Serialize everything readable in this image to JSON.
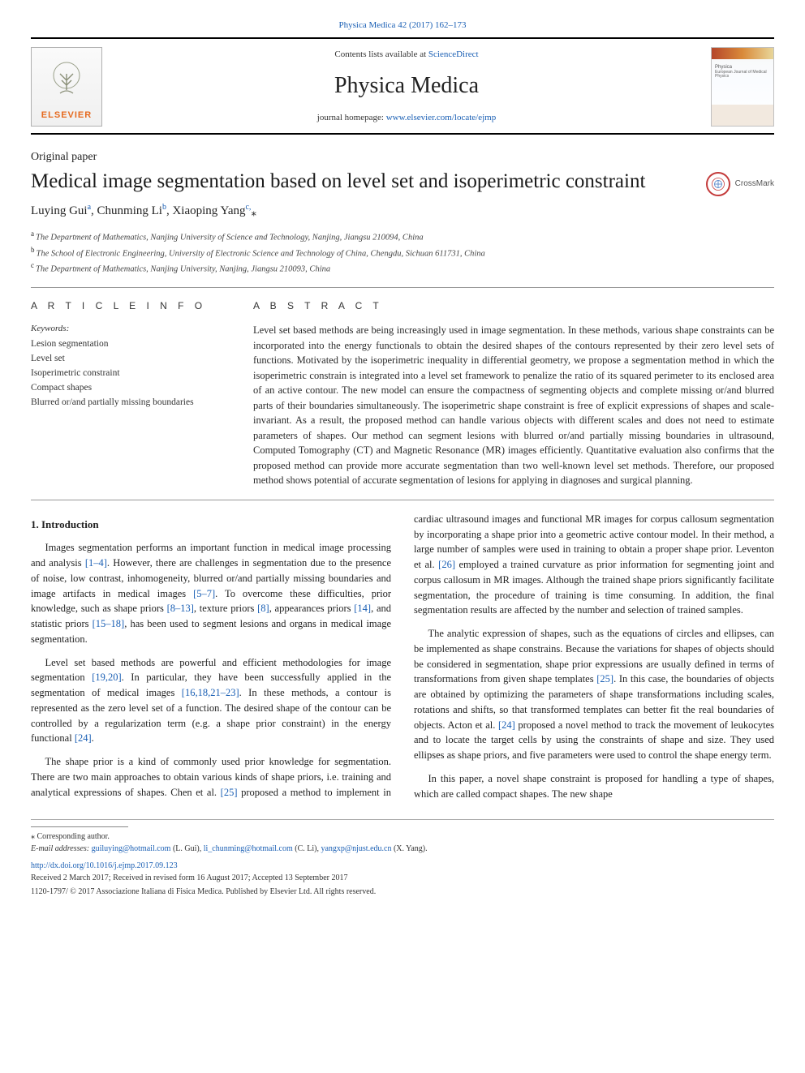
{
  "journal": {
    "top_link_label": "Physica Medica 42 (2017) 162–173",
    "top_link_href": "#",
    "contents_prefix": "Contents lists available at ",
    "contents_link": "ScienceDirect",
    "name": "Physica Medica",
    "homepage_prefix": "journal homepage: ",
    "homepage_url": "www.elsevier.com/locate/ejmp",
    "cover_title": "Physica",
    "cover_sub": "European Journal\nof Medical Physics",
    "elsevier_brand": "ELSEVIER"
  },
  "paper": {
    "type": "Original paper",
    "title": "Medical image segmentation based on level set and isoperimetric constraint",
    "crossmark": "CrossMark",
    "authors_html": "Luying Gui<sup class=\"sup\">a</sup>, Chunming Li<sup class=\"sup\">b</sup>, Xiaoping Yang<sup class=\"sup\">c,</sup><span class=\"corr-icon\">⁎</span>",
    "affiliations": [
      {
        "mark": "a",
        "text": "The Department of Mathematics, Nanjing University of Science and Technology, Nanjing, Jiangsu 210094, China"
      },
      {
        "mark": "b",
        "text": "The School of Electronic Engineering, University of Electronic Science and Technology of China, Chengdu, Sichuan 611731, China"
      },
      {
        "mark": "c",
        "text": "The Department of Mathematics, Nanjing University, Nanjing, Jiangsu 210093, China"
      }
    ]
  },
  "article_info": {
    "heading": "A R T I C L E  I N F O",
    "keywords_label": "Keywords:",
    "keywords": [
      "Lesion segmentation",
      "Level set",
      "Isoperimetric constraint",
      "Compact shapes",
      "Blurred or/and partially missing boundaries"
    ]
  },
  "abstract": {
    "heading": "A B S T R A C T",
    "text": "Level set based methods are being increasingly used in image segmentation. In these methods, various shape constraints can be incorporated into the energy functionals to obtain the desired shapes of the contours represented by their zero level sets of functions. Motivated by the isoperimetric inequality in differential geometry, we propose a segmentation method in which the isoperimetric constrain is integrated into a level set framework to penalize the ratio of its squared perimeter to its enclosed area of an active contour. The new model can ensure the compactness of segmenting objects and complete missing or/and blurred parts of their boundaries simultaneously. The isoperimetric shape constraint is free of explicit expressions of shapes and scale-invariant. As a result, the proposed method can handle various objects with different scales and does not need to estimate parameters of shapes. Our method can segment lesions with blurred or/and partially missing boundaries in ultrasound, Computed Tomography (CT) and Magnetic Resonance (MR) images efficiently. Quantitative evaluation also confirms that the proposed method can provide more accurate segmentation than two well-known level set methods. Therefore, our proposed method shows potential of accurate segmentation of lesions for applying in diagnoses and surgical planning."
  },
  "body": {
    "section_title": "1. Introduction",
    "paragraphs": [
      "Images segmentation performs an important function in medical image processing and analysis <span class=\"ref\">[1–4]</span>. However, there are challenges in segmentation due to the presence of noise, low contrast, inhomogeneity, blurred or/and partially missing boundaries and image artifacts in medical images <span class=\"ref\">[5–7]</span>. To overcome these difficulties, prior knowledge, such as shape priors <span class=\"ref\">[8–13]</span>, texture priors <span class=\"ref\">[8]</span>, appearances priors <span class=\"ref\">[14]</span>, and statistic priors <span class=\"ref\">[15–18]</span>, has been used to segment lesions and organs in medical image segmentation.",
      "Level set based methods are powerful and efficient methodologies for image segmentation <span class=\"ref\">[19,20]</span>. In particular, they have been successfully applied in the segmentation of medical images <span class=\"ref\">[16,18,21–23]</span>. In these methods, a contour is represented as the zero level set of a function. The desired shape of the contour can be controlled by a regularization term (e.g. a shape prior constraint) in the energy functional <span class=\"ref\">[24]</span>.",
      "The shape prior is a kind of commonly used prior knowledge for segmentation. There are two main approaches to obtain various kinds of shape priors, i.e. training and analytical expressions of shapes. Chen et al. <span class=\"ref\">[25]</span> proposed a method to implement in cardiac ultrasound images and functional MR images for corpus callosum segmentation by incorporating a shape prior into a geometric active contour model. In their method, a large number of samples were used in training to obtain a proper shape prior. Leventon et al. <span class=\"ref\">[26]</span> employed a trained curvature as prior information for segmenting joint and corpus callosum in MR images. Although the trained shape priors significantly facilitate segmentation, the procedure of training is time consuming. In addition, the final segmentation results are affected by the number and selection of trained samples.",
      "The analytic expression of shapes, such as the equations of circles and ellipses, can be implemented as shape constrains. Because the variations for shapes of objects should be considered in segmentation, shape prior expressions are usually defined in terms of transformations from given shape templates <span class=\"ref\">[25]</span>. In this case, the boundaries of objects are obtained by optimizing the parameters of shape transformations including scales, rotations and shifts, so that transformed templates can better fit the real boundaries of objects. Acton et al. <span class=\"ref\">[24]</span> proposed a novel method to track the movement of leukocytes and to locate the target cells by using the constraints of shape and size. They used ellipses as shape priors, and five parameters were used to control the shape energy term.",
      "In this paper, a novel shape constraint is proposed for handling a type of shapes, which are called compact shapes. The new shape"
    ]
  },
  "footer": {
    "corr": "⁎ Corresponding author.",
    "email_label": "E-mail addresses: ",
    "emails_html": "<a href=\"#\">guiluying@hotmail.com</a> (L. Gui), <a href=\"#\">li_chunming@hotmail.com</a> (C. Li), <a href=\"#\">yangxp@njust.edu.cn</a> (X. Yang).",
    "doi": "http://dx.doi.org/10.1016/j.ejmp.2017.09.123",
    "received": "Received 2 March 2017; Received in revised form 16 August 2017; Accepted 13 September 2017",
    "copyright": "1120-1797/ © 2017 Associazione Italiana di Fisica Medica. Published by Elsevier Ltd. All rights reserved."
  },
  "colors": {
    "link": "#1a5fb4",
    "orange": "#e66a1f",
    "rule": "#000000"
  }
}
